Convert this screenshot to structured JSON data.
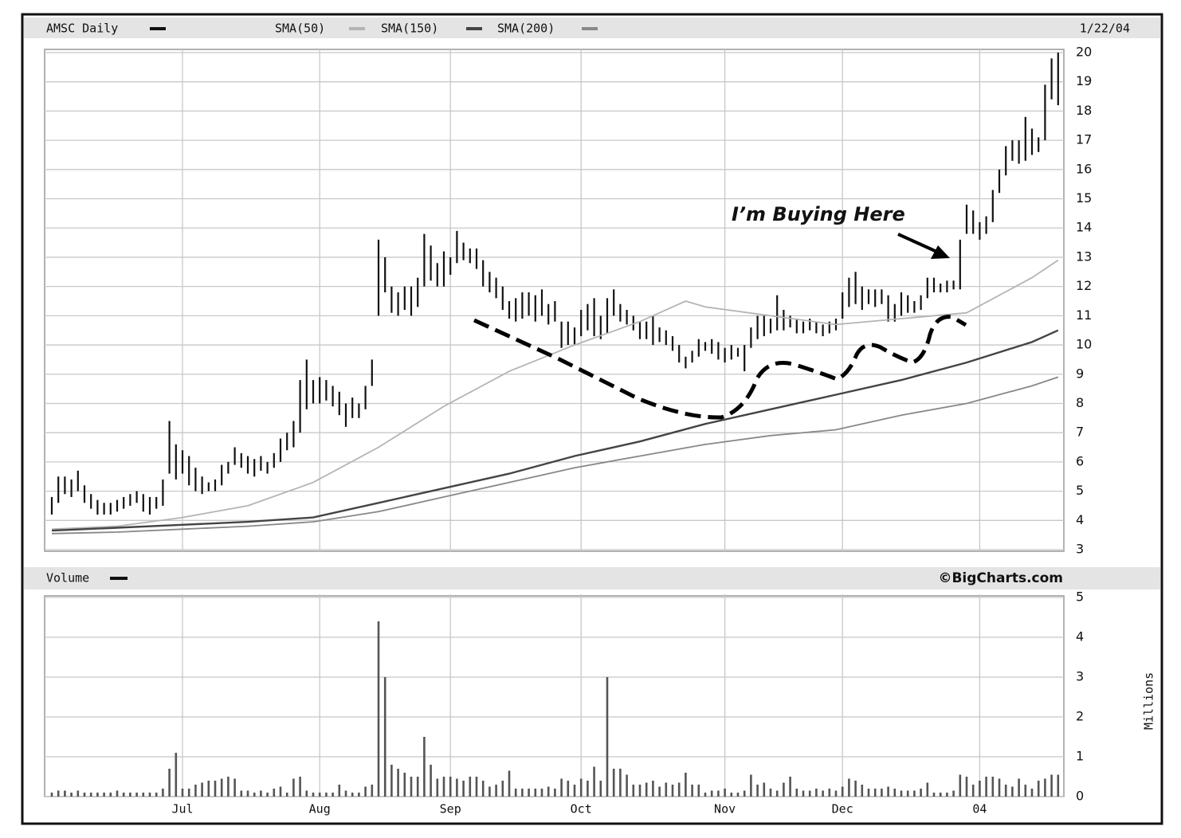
{
  "chart_data": [
    {
      "type": "ohlc",
      "date": "1/22/04",
      "annotation": "I’m Buying Here",
      "ylim": [
        3,
        20
      ],
      "yticks": [
        3,
        4,
        5,
        6,
        7,
        8,
        9,
        10,
        11,
        12,
        13,
        14,
        15,
        16,
        17,
        18,
        19,
        20
      ],
      "grid": true,
      "series": [
        {
          "name": "AMSC Daily",
          "color": "#111111",
          "high": [
            4.8,
            5.5,
            5.5,
            5.4,
            5.7,
            5.2,
            4.9,
            4.7,
            4.6,
            4.6,
            4.7,
            4.8,
            4.9,
            5.0,
            4.9,
            4.8,
            4.8,
            5.4,
            7.4,
            6.6,
            6.4,
            6.2,
            5.8,
            5.5,
            5.3,
            5.4,
            5.9,
            6.0,
            6.5,
            6.3,
            6.2,
            6.1,
            6.2,
            6.0,
            6.3,
            6.8,
            7.0,
            7.4,
            8.8,
            9.5,
            8.8,
            8.9,
            8.8,
            8.6,
            8.4,
            8.0,
            8.2,
            8.0,
            8.6,
            9.5,
            13.6,
            13.0,
            12.0,
            11.8,
            12.0,
            12.0,
            12.3,
            13.8,
            13.4,
            12.8,
            13.2,
            13.0,
            13.9,
            13.5,
            13.3,
            13.3,
            12.9,
            12.5,
            12.3,
            12.0,
            11.5,
            11.6,
            11.8,
            11.8,
            11.7,
            11.9,
            11.4,
            11.5,
            10.8,
            10.8,
            10.6,
            11.2,
            11.4,
            11.6,
            11.0,
            11.6,
            11.9,
            11.4,
            11.2,
            11.0,
            10.8,
            10.8,
            11.0,
            10.6,
            10.5,
            10.3,
            10.0,
            9.6,
            9.8,
            10.2,
            10.1,
            10.2,
            10.1,
            9.9,
            10.0,
            9.9,
            10.0,
            10.6,
            11.0,
            11.0,
            10.9,
            11.7,
            11.2,
            11.0,
            10.9,
            10.8,
            10.9,
            10.8,
            10.7,
            10.8,
            10.9,
            11.8,
            12.3,
            12.5,
            12.0,
            11.9,
            11.9,
            11.9,
            11.7,
            11.4,
            11.8,
            11.7,
            11.5,
            11.7,
            12.3,
            12.3,
            12.1,
            12.2,
            12.2,
            13.6,
            14.8,
            14.6,
            14.2,
            14.4,
            15.3,
            16.0,
            16.8,
            17.0,
            17.0,
            17.8,
            17.4,
            17.1,
            18.9,
            19.8,
            20.0
          ],
          "low": [
            4.2,
            4.6,
            4.9,
            4.8,
            5.0,
            4.6,
            4.4,
            4.2,
            4.2,
            4.2,
            4.3,
            4.4,
            4.5,
            4.6,
            4.3,
            4.2,
            4.4,
            4.5,
            5.6,
            5.4,
            5.6,
            5.2,
            5.0,
            4.9,
            5.0,
            5.0,
            5.2,
            5.6,
            5.9,
            5.8,
            5.6,
            5.5,
            5.7,
            5.6,
            5.8,
            6.0,
            6.4,
            6.5,
            7.0,
            7.8,
            8.0,
            8.0,
            8.1,
            7.9,
            7.6,
            7.2,
            7.5,
            7.5,
            7.8,
            8.6,
            11.0,
            11.8,
            11.1,
            11.0,
            11.2,
            11.0,
            11.3,
            12.0,
            12.2,
            12.0,
            12.0,
            12.4,
            12.8,
            12.9,
            12.8,
            12.6,
            12.0,
            11.8,
            11.6,
            11.2,
            10.9,
            10.8,
            10.9,
            11.0,
            10.8,
            11.0,
            10.7,
            10.8,
            9.9,
            10.0,
            10.0,
            10.3,
            10.5,
            10.3,
            10.2,
            10.4,
            11.0,
            10.8,
            10.7,
            10.5,
            10.2,
            10.2,
            10.0,
            10.1,
            10.0,
            9.8,
            9.4,
            9.2,
            9.4,
            9.6,
            9.8,
            9.7,
            9.5,
            9.4,
            9.5,
            9.6,
            9.1,
            9.9,
            10.2,
            10.3,
            10.4,
            10.5,
            10.5,
            10.6,
            10.4,
            10.4,
            10.5,
            10.4,
            10.3,
            10.4,
            10.5,
            10.9,
            11.3,
            11.4,
            11.2,
            11.4,
            11.3,
            11.4,
            10.8,
            10.8,
            11.0,
            11.1,
            11.1,
            11.2,
            11.6,
            11.8,
            11.8,
            11.8,
            11.9,
            11.9,
            13.8,
            13.8,
            13.6,
            13.8,
            14.2,
            15.2,
            15.8,
            16.3,
            16.2,
            16.3,
            16.5,
            16.6,
            17.0,
            18.4,
            18.2
          ]
        },
        {
          "name": "SMA(50)",
          "color": "#b4b4b4",
          "x": [
            0,
            10,
            20,
            30,
            40,
            50,
            60,
            70,
            80,
            90,
            97,
            100,
            110,
            120,
            130,
            140,
            150,
            154
          ],
          "values": [
            3.7,
            3.8,
            4.1,
            4.5,
            5.3,
            6.5,
            7.9,
            9.1,
            10.0,
            10.8,
            11.5,
            11.3,
            11.0,
            10.7,
            10.9,
            11.1,
            12.3,
            12.9
          ]
        },
        {
          "name": "SMA(150)",
          "color": "#444444",
          "x": [
            0,
            10,
            20,
            30,
            40,
            50,
            60,
            70,
            80,
            90,
            100,
            110,
            120,
            130,
            140,
            150,
            154
          ],
          "values": [
            3.65,
            3.75,
            3.85,
            3.95,
            4.1,
            4.6,
            5.1,
            5.6,
            6.2,
            6.7,
            7.3,
            7.8,
            8.3,
            8.8,
            9.4,
            10.1,
            10.5
          ]
        },
        {
          "name": "SMA(200)",
          "color": "#888888",
          "x": [
            0,
            10,
            20,
            30,
            40,
            50,
            60,
            70,
            80,
            90,
            100,
            110,
            120,
            130,
            140,
            150,
            154
          ],
          "values": [
            3.55,
            3.6,
            3.7,
            3.8,
            3.95,
            4.3,
            4.8,
            5.3,
            5.8,
            6.2,
            6.6,
            6.9,
            7.1,
            7.6,
            8.0,
            8.6,
            8.9
          ]
        }
      ]
    },
    {
      "type": "bar",
      "source": "©BigCharts.com",
      "y_label": "Millions",
      "ylim": [
        0,
        5
      ],
      "yticks": [
        0,
        1,
        2,
        3,
        4,
        5
      ],
      "grid": true,
      "series": [
        {
          "name": "Volume",
          "color": "#555555",
          "values": [
            0.1,
            0.15,
            0.15,
            0.1,
            0.15,
            0.1,
            0.1,
            0.1,
            0.1,
            0.1,
            0.15,
            0.1,
            0.1,
            0.1,
            0.1,
            0.1,
            0.1,
            0.2,
            0.7,
            1.1,
            0.2,
            0.2,
            0.3,
            0.35,
            0.4,
            0.4,
            0.45,
            0.5,
            0.45,
            0.15,
            0.15,
            0.1,
            0.15,
            0.1,
            0.2,
            0.25,
            0.1,
            0.45,
            0.5,
            0.15,
            0.1,
            0.1,
            0.1,
            0.1,
            0.3,
            0.15,
            0.1,
            0.1,
            0.25,
            0.3,
            4.4,
            3.0,
            0.8,
            0.7,
            0.6,
            0.5,
            0.5,
            1.5,
            0.8,
            0.45,
            0.5,
            0.5,
            0.45,
            0.4,
            0.5,
            0.5,
            0.4,
            0.25,
            0.3,
            0.4,
            0.65,
            0.2,
            0.2,
            0.2,
            0.2,
            0.2,
            0.25,
            0.2,
            0.45,
            0.4,
            0.3,
            0.45,
            0.4,
            0.75,
            0.4,
            3.0,
            0.7,
            0.7,
            0.55,
            0.3,
            0.3,
            0.35,
            0.4,
            0.25,
            0.35,
            0.3,
            0.35,
            0.6,
            0.3,
            0.3,
            0.1,
            0.15,
            0.15,
            0.2,
            0.1,
            0.1,
            0.15,
            0.55,
            0.3,
            0.35,
            0.2,
            0.15,
            0.35,
            0.5,
            0.2,
            0.15,
            0.15,
            0.2,
            0.15,
            0.2,
            0.15,
            0.25,
            0.45,
            0.4,
            0.3,
            0.2,
            0.2,
            0.2,
            0.25,
            0.2,
            0.15,
            0.15,
            0.15,
            0.2,
            0.35,
            0.1,
            0.1,
            0.1,
            0.15,
            0.55,
            0.5,
            0.3,
            0.4,
            0.5,
            0.5,
            0.45,
            0.3,
            0.25,
            0.45,
            0.3,
            0.2,
            0.4,
            0.45,
            0.55,
            0.55
          ]
        }
      ],
      "categories": [
        null,
        null,
        null,
        null,
        null,
        null,
        null,
        null,
        null,
        null,
        null,
        null,
        null,
        null,
        null,
        null,
        null,
        null,
        null,
        null,
        "Jul",
        null,
        null,
        null,
        null,
        null,
        null,
        null,
        null,
        null,
        null,
        null,
        null,
        null,
        null,
        null,
        null,
        null,
        null,
        null,
        null,
        "Aug",
        null,
        null,
        null,
        null,
        null,
        null,
        null,
        null,
        null,
        null,
        null,
        null,
        null,
        null,
        null,
        null,
        null,
        null,
        null,
        "Sep",
        null,
        null,
        null,
        null,
        null,
        null,
        null,
        null,
        null,
        null,
        null,
        null,
        null,
        null,
        null,
        null,
        null,
        null,
        null,
        "Oct",
        null,
        null,
        null,
        null,
        null,
        null,
        null,
        null,
        null,
        null,
        null,
        null,
        null,
        null,
        null,
        null,
        null,
        null,
        null,
        null,
        null,
        "Nov",
        null,
        null,
        null,
        null,
        null,
        null,
        null,
        null,
        null,
        null,
        null,
        null,
        null,
        null,
        null,
        null,
        null,
        "Dec",
        null,
        null,
        null,
        null,
        null,
        null,
        null,
        null,
        null,
        null,
        null,
        null,
        null,
        null,
        null,
        null,
        null,
        null,
        null,
        null,
        "04",
        null,
        null,
        null,
        null,
        null,
        null,
        null,
        null,
        null,
        null,
        null,
        null
      ]
    }
  ]
}
